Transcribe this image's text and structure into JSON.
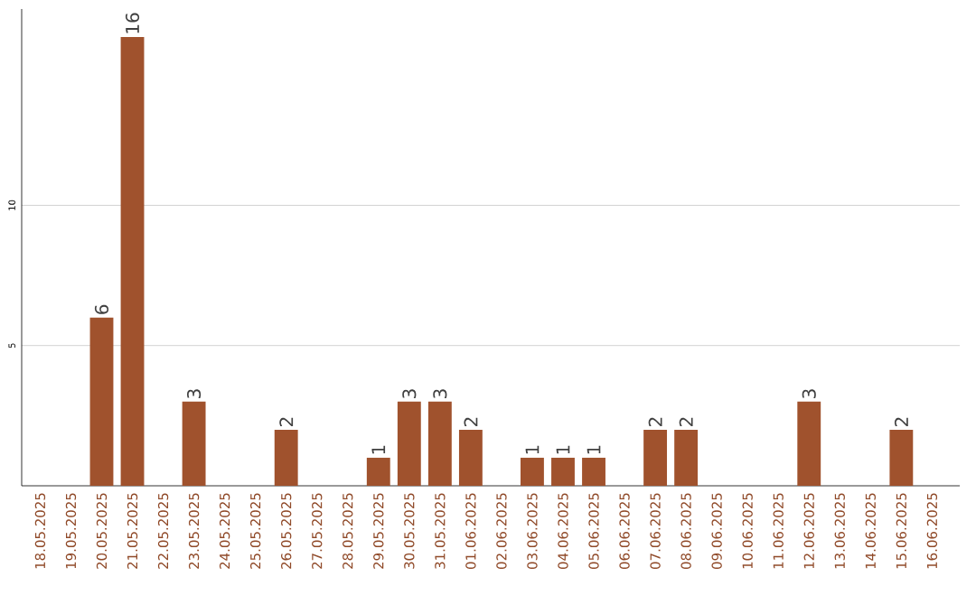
{
  "chart_data": {
    "type": "bar",
    "color": "#a0522d",
    "categories": [
      "18.05.2025",
      "19.05.2025",
      "20.05.2025",
      "21.05.2025",
      "22.05.2025",
      "23.05.2025",
      "24.05.2025",
      "25.05.2025",
      "26.05.2025",
      "27.05.2025",
      "28.05.2025",
      "29.05.2025",
      "30.05.2025",
      "31.05.2025",
      "01.06.2025",
      "02.06.2025",
      "03.06.2025",
      "04.06.2025",
      "05.06.2025",
      "06.06.2025",
      "07.06.2025",
      "08.06.2025",
      "09.06.2025",
      "10.06.2025",
      "11.06.2025",
      "12.06.2025",
      "13.06.2025",
      "14.06.2025",
      "15.06.2025",
      "16.06.2025"
    ],
    "values": [
      0,
      0,
      6,
      16,
      0,
      3,
      0,
      0,
      2,
      0,
      0,
      1,
      3,
      3,
      2,
      0,
      1,
      1,
      1,
      0,
      2,
      2,
      0,
      0,
      0,
      3,
      0,
      0,
      2,
      0
    ],
    "value_labels": [
      null,
      null,
      "6",
      "16",
      null,
      "3",
      null,
      null,
      "2",
      null,
      null,
      "1",
      "3",
      "3",
      "2",
      null,
      "1",
      "1",
      "1",
      null,
      "2",
      "2",
      null,
      null,
      null,
      "3",
      null,
      null,
      "2",
      null
    ],
    "ylim": [
      0,
      17
    ],
    "yticks": [
      5,
      10
    ],
    "grid": "y"
  }
}
